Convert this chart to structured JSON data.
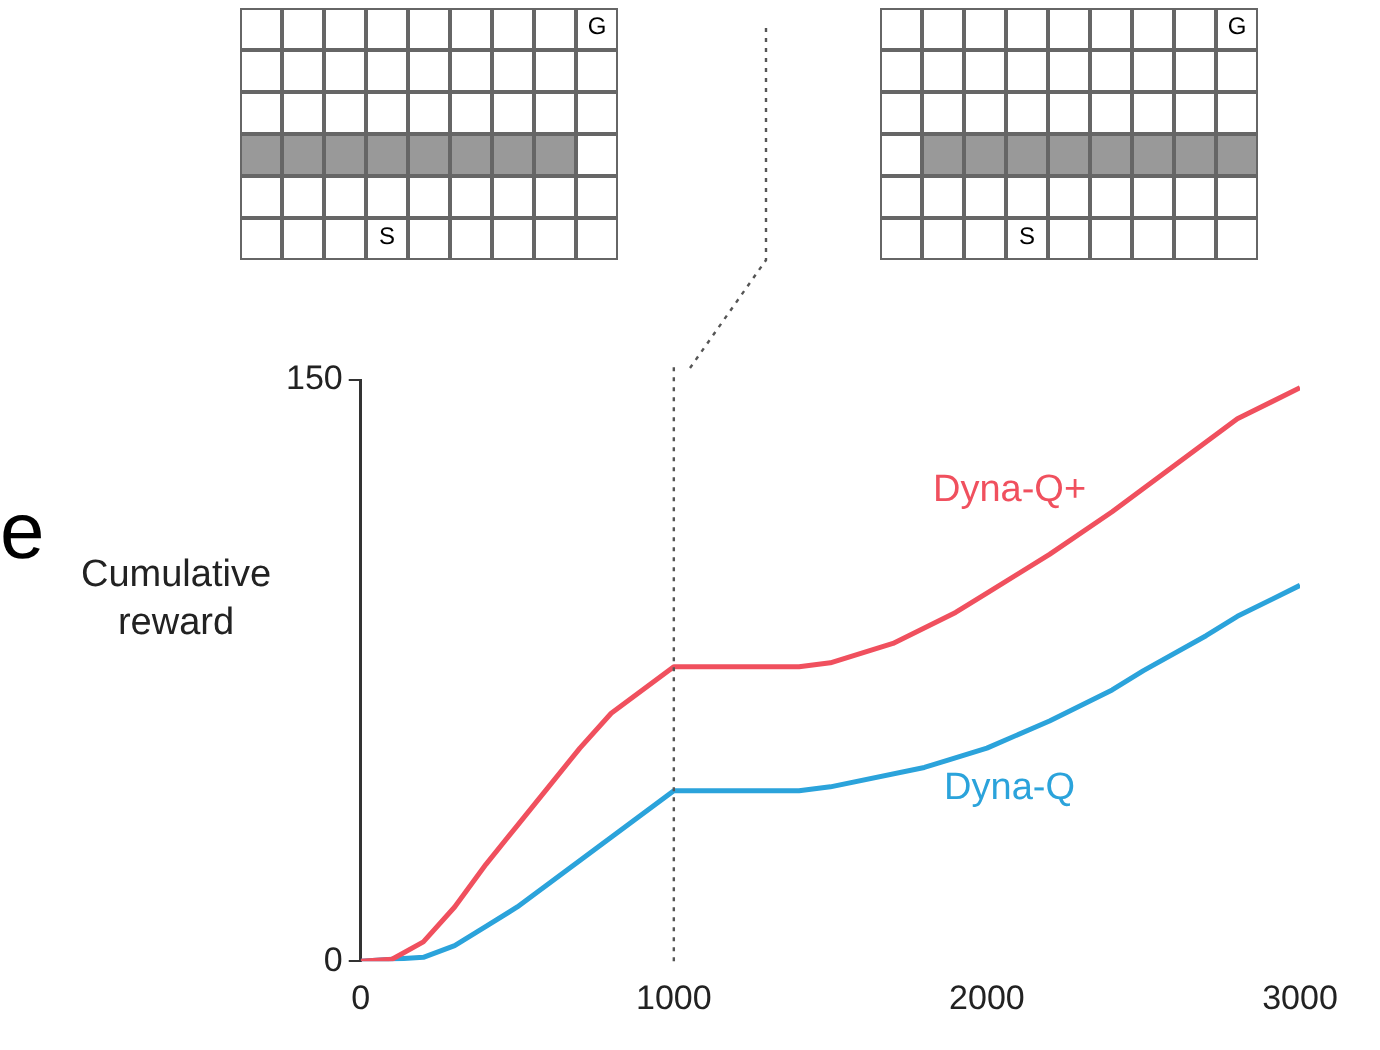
{
  "chart_data": {
    "type": "line",
    "ylabel": "Cumulative reward",
    "xlim": [
      0,
      3000
    ],
    "xticks": [
      0,
      1000,
      2000,
      3000
    ],
    "ylim": [
      0,
      150
    ],
    "yticks": [
      0,
      150
    ],
    "grid": false,
    "legend": false,
    "marker": "none",
    "ref_lines": [
      {
        "axis": "x",
        "value": 1000,
        "color": "#555555",
        "line_style": "dotted"
      }
    ],
    "annotations": [
      "G",
      "S",
      "G",
      "S",
      "e"
    ],
    "series": [
      {
        "name": "Dyna-Q+",
        "color": "#f0505e",
        "x": [
          0,
          100,
          200,
          300,
          400,
          500,
          600,
          700,
          800,
          900,
          1000,
          1200,
          1400,
          1500,
          1700,
          1900,
          2000,
          2200,
          2400,
          2500,
          2700,
          2800,
          3000
        ],
        "values": [
          0,
          0.5,
          5,
          14,
          25,
          35,
          45,
          55,
          64,
          70,
          76,
          76,
          76,
          77,
          82,
          90,
          95,
          105,
          116,
          122,
          134,
          140,
          148
        ]
      },
      {
        "name": "Dyna-Q",
        "color": "#2ba3db",
        "x": [
          0,
          200,
          300,
          400,
          500,
          600,
          700,
          800,
          900,
          1000,
          1200,
          1400,
          1500,
          1800,
          2000,
          2200,
          2400,
          2500,
          2700,
          2800,
          3000
        ],
        "values": [
          0,
          1,
          4,
          9,
          14,
          20,
          26,
          32,
          38,
          44,
          44,
          44,
          45,
          50,
          55,
          62,
          70,
          75,
          84,
          89,
          97
        ]
      }
    ]
  }
}
